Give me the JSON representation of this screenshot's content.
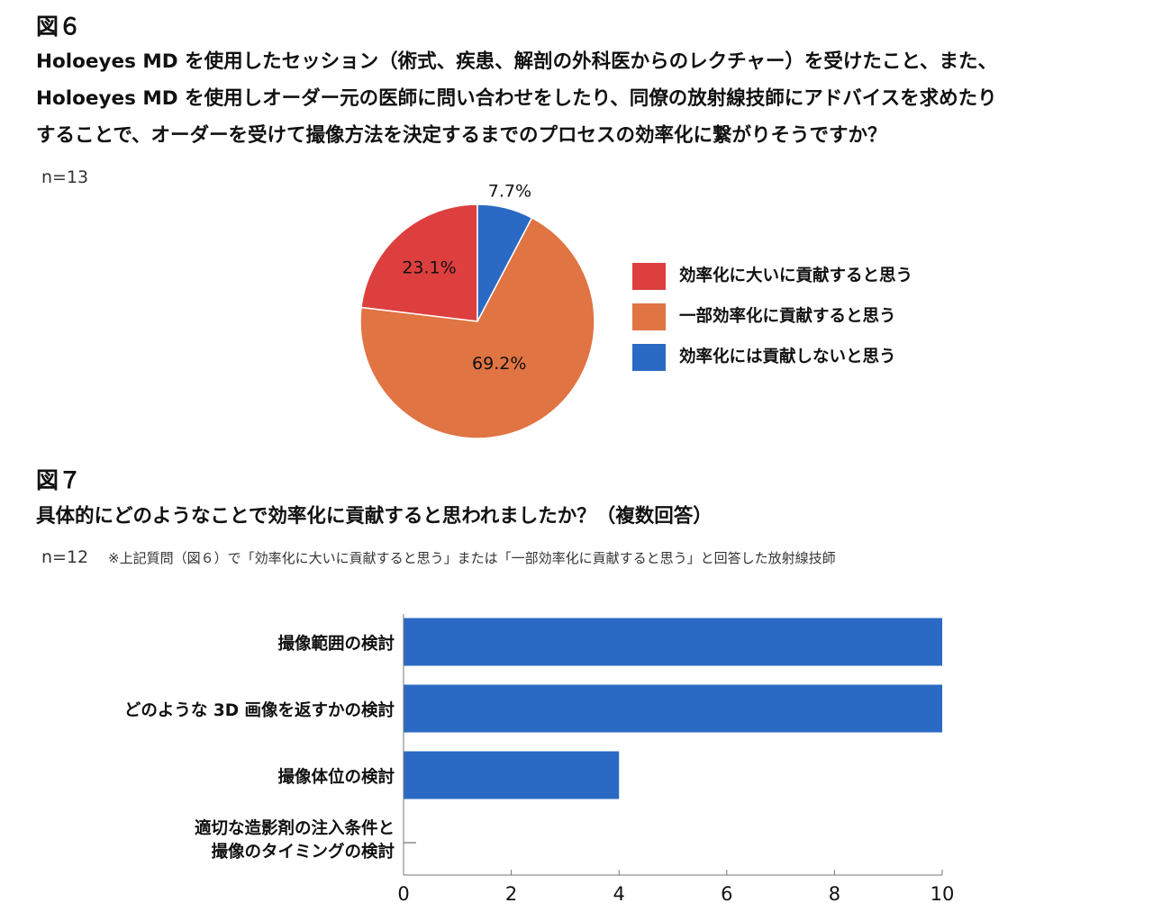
{
  "figure6": {
    "label": "図６",
    "question_lines": [
      "Holoeyes MD を使用したセッション（術式、疾患、解剖の外科医からのレクチャー）を受けたこと、また、",
      "Holoeyes MD を使用しオーダー元の医師に問い合わせをしたり、同僚の放射線技師にアドバイスを求めたり",
      "することで、オーダーを受けて撮像方法を決定するまでのプロセスの効率化に繋がりそうですか？"
    ],
    "n": "n=13"
  },
  "figure7": {
    "label": "図７",
    "question": "具体的にどのようなことで効率化に貢献すると思われましたか？（複数回答）",
    "n": "n=12",
    "note": "※上記質問（図６）で「効率化に大いに貢献すると思う」または「一部効率化に貢献すると思う」と回答した放射線技師"
  },
  "chart_data": [
    {
      "type": "pie",
      "title": "",
      "legend_position": "right",
      "slices": [
        {
          "label": "効率化に大いに貢献すると思う",
          "value": 23.1,
          "value_label": "23.1%",
          "color": "#DD3F3F"
        },
        {
          "label": "一部効率化に貢献すると思う",
          "value": 69.2,
          "value_label": "69.2%",
          "color": "#E07443"
        },
        {
          "label": "効率化には貢献しないと思う",
          "value": 7.7,
          "value_label": "7.7%",
          "color": "#2B6AC4"
        }
      ]
    },
    {
      "type": "bar",
      "orientation": "horizontal",
      "title": "",
      "xlabel": "",
      "ylabel": "",
      "xlim": [
        0,
        10
      ],
      "xticks": [
        "0",
        "2",
        "4",
        "6",
        "8",
        "10"
      ],
      "grid": false,
      "bar_color": "#2B6AC4",
      "categories": [
        [
          "撮像範囲の検討"
        ],
        [
          "どのような 3D 画像を返すかの検討"
        ],
        [
          "撮像体位の検討"
        ],
        [
          "適切な造影剤の注入条件と",
          "撮像のタイミングの検討"
        ]
      ],
      "values": [
        10,
        10,
        4,
        0
      ]
    }
  ]
}
